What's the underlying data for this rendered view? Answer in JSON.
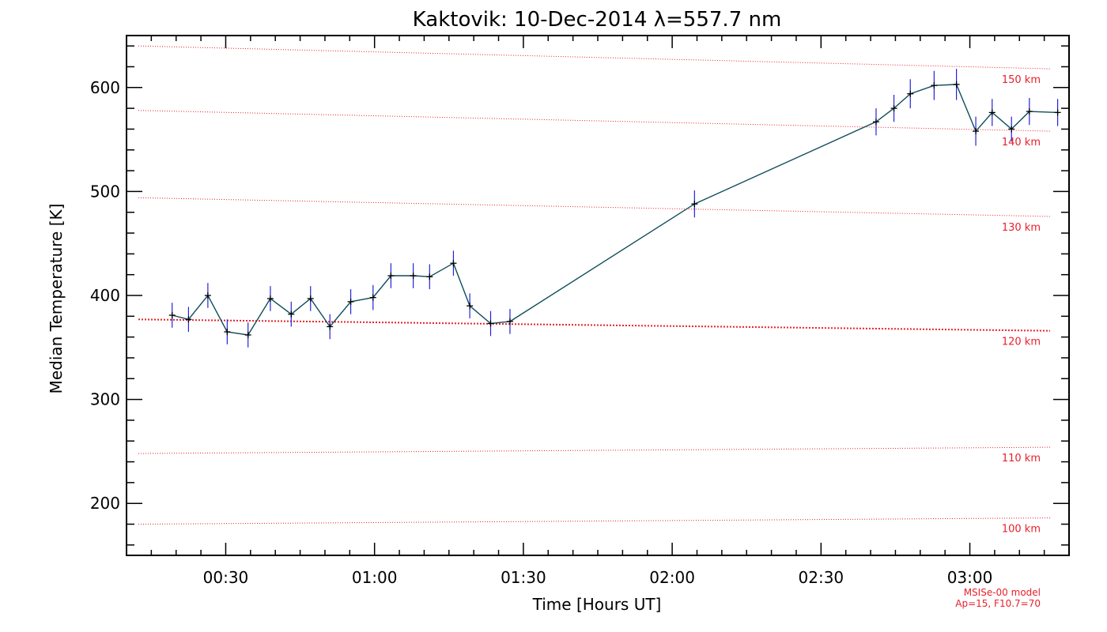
{
  "chart_data": {
    "type": "line",
    "title": "Kaktovik: 10-Dec-2014 λ=557.7 nm",
    "xlabel": "Time [Hours UT]",
    "ylabel": "Median Temperature [K]",
    "xlim": [
      0.1667,
      3.3333
    ],
    "ylim": [
      150,
      650
    ],
    "x_ticks": [
      {
        "value": 0.5,
        "label": "00:30"
      },
      {
        "value": 1.0,
        "label": "01:00"
      },
      {
        "value": 1.5,
        "label": "01:30"
      },
      {
        "value": 2.0,
        "label": "02:00"
      },
      {
        "value": 2.5,
        "label": "02:30"
      },
      {
        "value": 3.0,
        "label": "03:00"
      }
    ],
    "y_ticks": [
      {
        "value": 200,
        "label": "200"
      },
      {
        "value": 300,
        "label": "300"
      },
      {
        "value": 400,
        "label": "400"
      },
      {
        "value": 500,
        "label": "500"
      },
      {
        "value": 600,
        "label": "600"
      }
    ],
    "series": [
      {
        "name": "Median Temperature",
        "color": "#0f4c5c",
        "marker_color": "#000000",
        "error_color": "#2222dd",
        "x": [
          0.32,
          0.375,
          0.44,
          0.505,
          0.575,
          0.65,
          0.72,
          0.785,
          0.85,
          0.92,
          0.995,
          1.055,
          1.13,
          1.185,
          1.265,
          1.32,
          1.39,
          1.455,
          2.075,
          2.685,
          2.745,
          2.8,
          2.88,
          2.955,
          3.02,
          3.075,
          3.14,
          3.2,
          3.295
        ],
        "values": [
          381,
          377,
          400,
          365,
          362,
          397,
          382,
          397,
          370,
          394,
          398,
          419,
          419,
          418,
          431,
          390,
          373,
          375,
          488,
          567,
          580,
          594,
          602,
          603,
          558,
          576,
          560,
          577,
          576
        ],
        "error": [
          12,
          12,
          12,
          12,
          12,
          12,
          12,
          12,
          12,
          12,
          12,
          12,
          12,
          12,
          12,
          12,
          12,
          12,
          13,
          13,
          13,
          14,
          14,
          15,
          14,
          13,
          12,
          13,
          13
        ]
      }
    ],
    "model_lines": [
      {
        "label": "100 km",
        "start": 180,
        "end": 186
      },
      {
        "label": "110 km",
        "start": 248,
        "end": 254
      },
      {
        "label": "120 km",
        "start": 377,
        "end": 366
      },
      {
        "label": "130 km",
        "start": 494,
        "end": 476
      },
      {
        "label": "140 km",
        "start": 578,
        "end": 558
      },
      {
        "label": "150 km",
        "start": 640,
        "end": 618
      }
    ],
    "model_color": "#e8202a",
    "annotations": [
      "MSISe-00 model",
      "Ap=15, F10.7=70"
    ]
  }
}
